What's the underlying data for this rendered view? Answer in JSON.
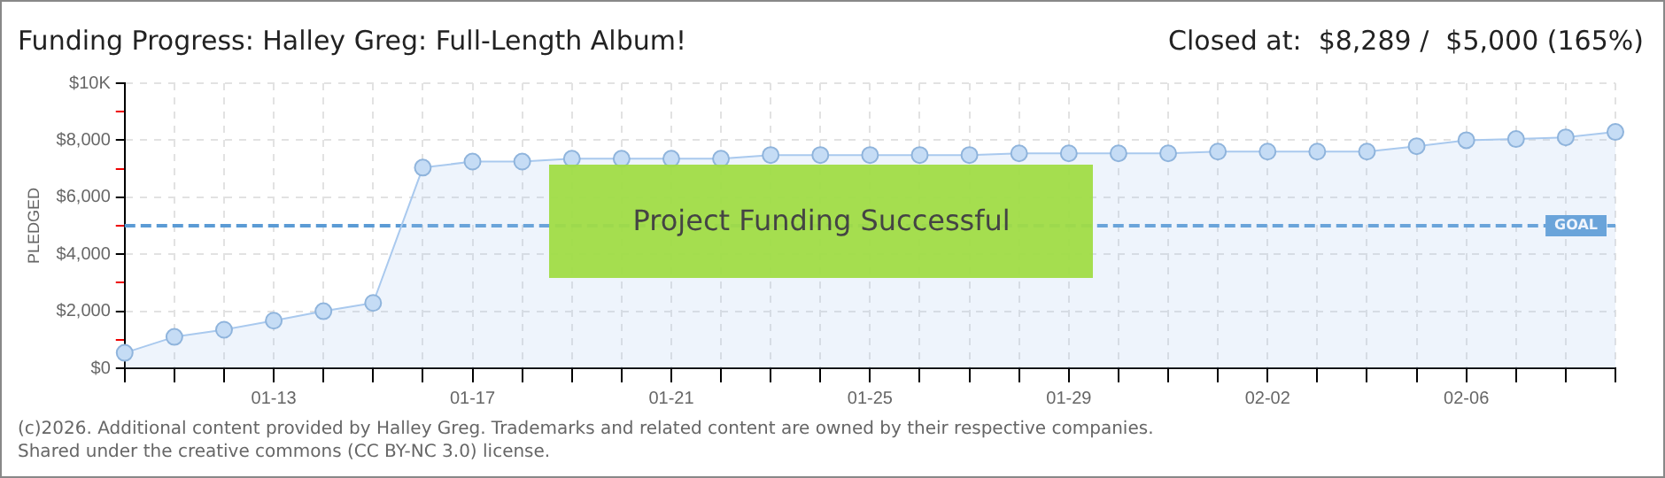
{
  "chart_data": {
    "type": "area",
    "title": "Funding Progress: Halley Greg: Full-Length Album!",
    "subtitle": "Closed at:  $8,289 /  $5,000 (165%)",
    "ylabel": "PLEDGED",
    "categories": [
      null,
      null,
      null,
      "01-13",
      null,
      null,
      null,
      "01-17",
      null,
      null,
      null,
      "01-21",
      null,
      null,
      null,
      "01-25",
      null,
      null,
      null,
      "01-29",
      null,
      null,
      null,
      "02-02",
      null,
      null,
      null,
      "02-06",
      null,
      null,
      null
    ],
    "series": [
      {
        "color": "#a9c9ee",
        "values": [
          540,
          1100,
          1350,
          1670,
          2000,
          2290,
          7040,
          7250,
          7250,
          7350,
          7350,
          7350,
          7350,
          7480,
          7480,
          7480,
          7480,
          7480,
          7540,
          7540,
          7540,
          7540,
          7600,
          7600,
          7600,
          7600,
          7790,
          8000,
          8040,
          8100,
          8289
        ]
      }
    ],
    "ylim": [
      0,
      10000
    ],
    "yticks": [
      {
        "value": 0,
        "label": "$0"
      },
      {
        "value": 1000,
        "label": null
      },
      {
        "value": 2000,
        "label": "$2,000"
      },
      {
        "value": 3000,
        "label": null
      },
      {
        "value": 4000,
        "label": "$4,000"
      },
      {
        "value": 5000,
        "label": null
      },
      {
        "value": 6000,
        "label": "$6,000"
      },
      {
        "value": 7000,
        "label": null
      },
      {
        "value": 8000,
        "label": "$8,000"
      },
      {
        "value": 9000,
        "label": null
      },
      {
        "value": 10000,
        "label": "$10K"
      }
    ],
    "ref_lines": [
      {
        "axis": "y",
        "value": 5000,
        "label": "GOAL",
        "color": "#5b9bd5",
        "line_style": "dashed"
      }
    ],
    "annotations": [
      "Project Funding Successful",
      "(c)2026. Additional content provided by Halley Greg. Trademarks and related content are owned by their respective companies.",
      "Shared under the creative commons (CC BY-NC 3.0) license."
    ],
    "grid": true,
    "legend": false,
    "marker": "circle",
    "line_style": "solid"
  }
}
